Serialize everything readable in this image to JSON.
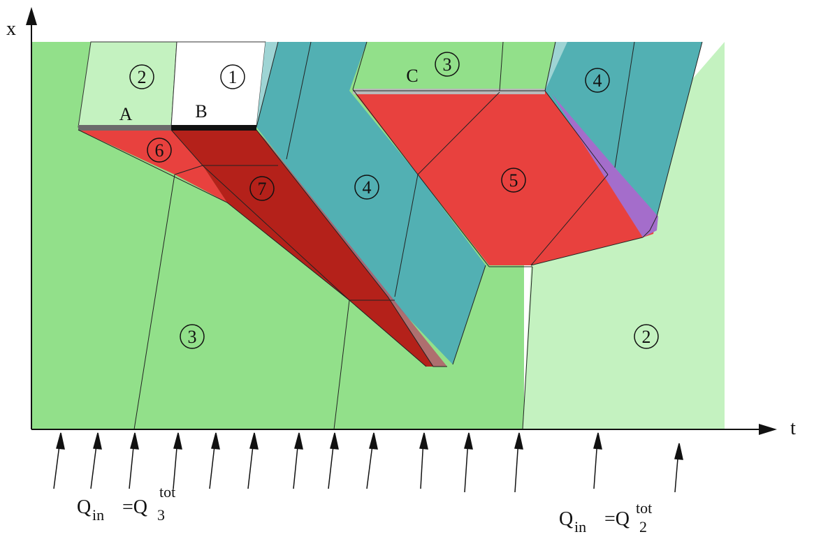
{
  "axes": {
    "x_label": "x",
    "t_label": "t"
  },
  "region_labels": [
    "2",
    "1",
    "3",
    "4",
    "6",
    "7",
    "4",
    "5",
    "3",
    "2"
  ],
  "letters": [
    "A",
    "B",
    "C"
  ],
  "formula_left": {
    "q": "Q",
    "sub_in": "in",
    "eq": "=Q",
    "sub_k": "3",
    "sup": "tot"
  },
  "formula_right": {
    "q": "Q",
    "sub_in": "in",
    "eq": "=Q",
    "sub_k": "2",
    "sup": "tot"
  },
  "colors": {
    "green": "#92e08a",
    "light_green": "#c4f2c0",
    "white": "#ffffff",
    "teal": "#52b0b3",
    "light_teal": "#9ed4d4",
    "red": "#e8413e",
    "dark_red": "#b4211a",
    "pink": "#b35a6a",
    "purple": "#a46dcb",
    "bar_gray": "#6b6b6b",
    "bar_black": "#111111",
    "bar_light": "#b9b9b9"
  }
}
